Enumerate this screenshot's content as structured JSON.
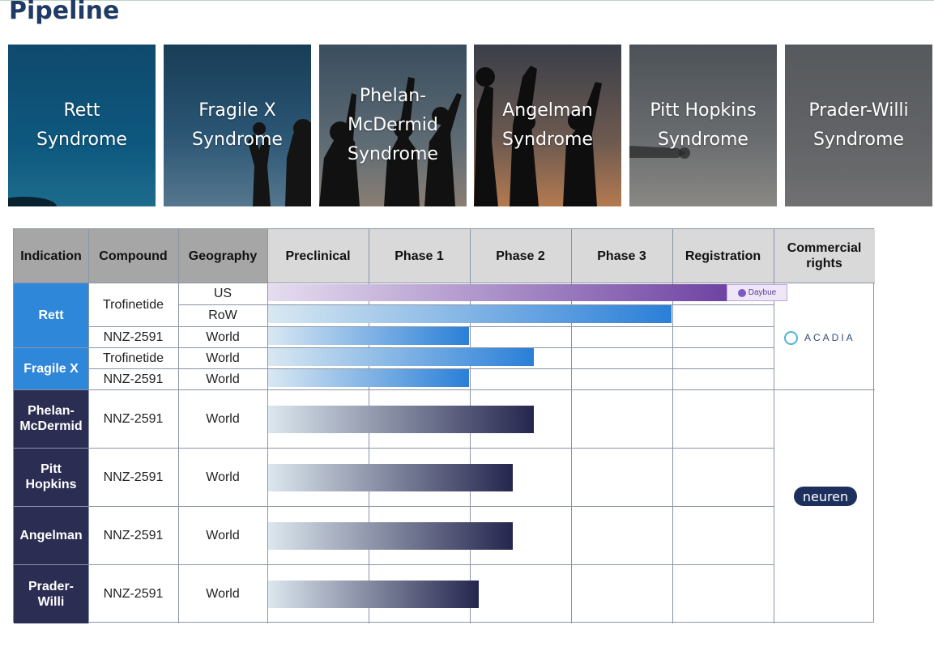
{
  "page": {
    "title": "Pipeline"
  },
  "tiles": [
    {
      "label": "Rett\nSyndrome"
    },
    {
      "label": "Fragile X\nSyndrome"
    },
    {
      "label": "Phelan-\nMcDermid\nSyndrome"
    },
    {
      "label": "Angelman\nSyndrome"
    },
    {
      "label": "Pitt Hopkins\nSyndrome"
    },
    {
      "label": "Prader-Willi\nSyndrome"
    }
  ],
  "table": {
    "headers": {
      "indication": "Indication",
      "compound": "Compound",
      "geography": "Geography",
      "preclinical": "Preclinical",
      "phase1": "Phase 1",
      "phase2": "Phase 2",
      "phase3": "Phase 3",
      "registration": "Registration",
      "commercial": "Commercial\nrights"
    },
    "indications": {
      "rett": "Rett",
      "fragilex": "Fragile X",
      "phelan": "Phelan-\nMcDermid",
      "pitt": "Pitt\nHopkins",
      "angelman": "Angelman",
      "prader": "Prader-\nWilli"
    },
    "rows": [
      {
        "compound": "Trofinetide",
        "geography": "US"
      },
      {
        "compound": "",
        "geography": "RoW"
      },
      {
        "compound": "NNZ-2591",
        "geography": "World"
      },
      {
        "compound": "Trofinetide",
        "geography": "World"
      },
      {
        "compound": "NNZ-2591",
        "geography": "World"
      },
      {
        "compound": "NNZ-2591",
        "geography": "World"
      },
      {
        "compound": "NNZ-2591",
        "geography": "World"
      },
      {
        "compound": "NNZ-2591",
        "geography": "World"
      },
      {
        "compound": "NNZ-2591",
        "geography": "World"
      }
    ],
    "compound_merged": {
      "rett_trofinetide": "Trofinetide"
    },
    "progress_note": "Progress measured in phase-column widths (5 columns: Preclinical, Phase 1, Phase 2, Phase 3, Registration)",
    "progress": [
      {
        "indication": "Rett",
        "geography": "US",
        "phases_completed": 5.1
      },
      {
        "indication": "Rett",
        "geography": "RoW",
        "phases_completed": 4.0
      },
      {
        "indication": "Rett",
        "compound": "NNZ-2591",
        "phases_completed": 2.0
      },
      {
        "indication": "Fragile X",
        "compound": "Trofinetide",
        "phases_completed": 2.64
      },
      {
        "indication": "Fragile X",
        "compound": "NNZ-2591",
        "phases_completed": 2.0
      },
      {
        "indication": "Phelan-McDermid",
        "phases_completed": 2.64
      },
      {
        "indication": "Pitt Hopkins",
        "phases_completed": 2.43
      },
      {
        "indication": "Angelman",
        "phases_completed": 2.43
      },
      {
        "indication": "Prader-Willi",
        "phases_completed": 2.08
      }
    ]
  },
  "partners": {
    "daybue_label": "Daybue",
    "acadia_label": "ACADIA",
    "neuren_label": "neuren"
  },
  "colors": {
    "title": "#1f3a64",
    "rett_fragile_band": "#2f87da",
    "other_band": "#2c2d52",
    "bar_blue_start": "#d9e8f2",
    "bar_blue_end": "#2a7fd8",
    "bar_navy_start": "#dce7ee",
    "bar_navy_end": "#25264e",
    "bar_purple_end": "#6c3fa0"
  }
}
